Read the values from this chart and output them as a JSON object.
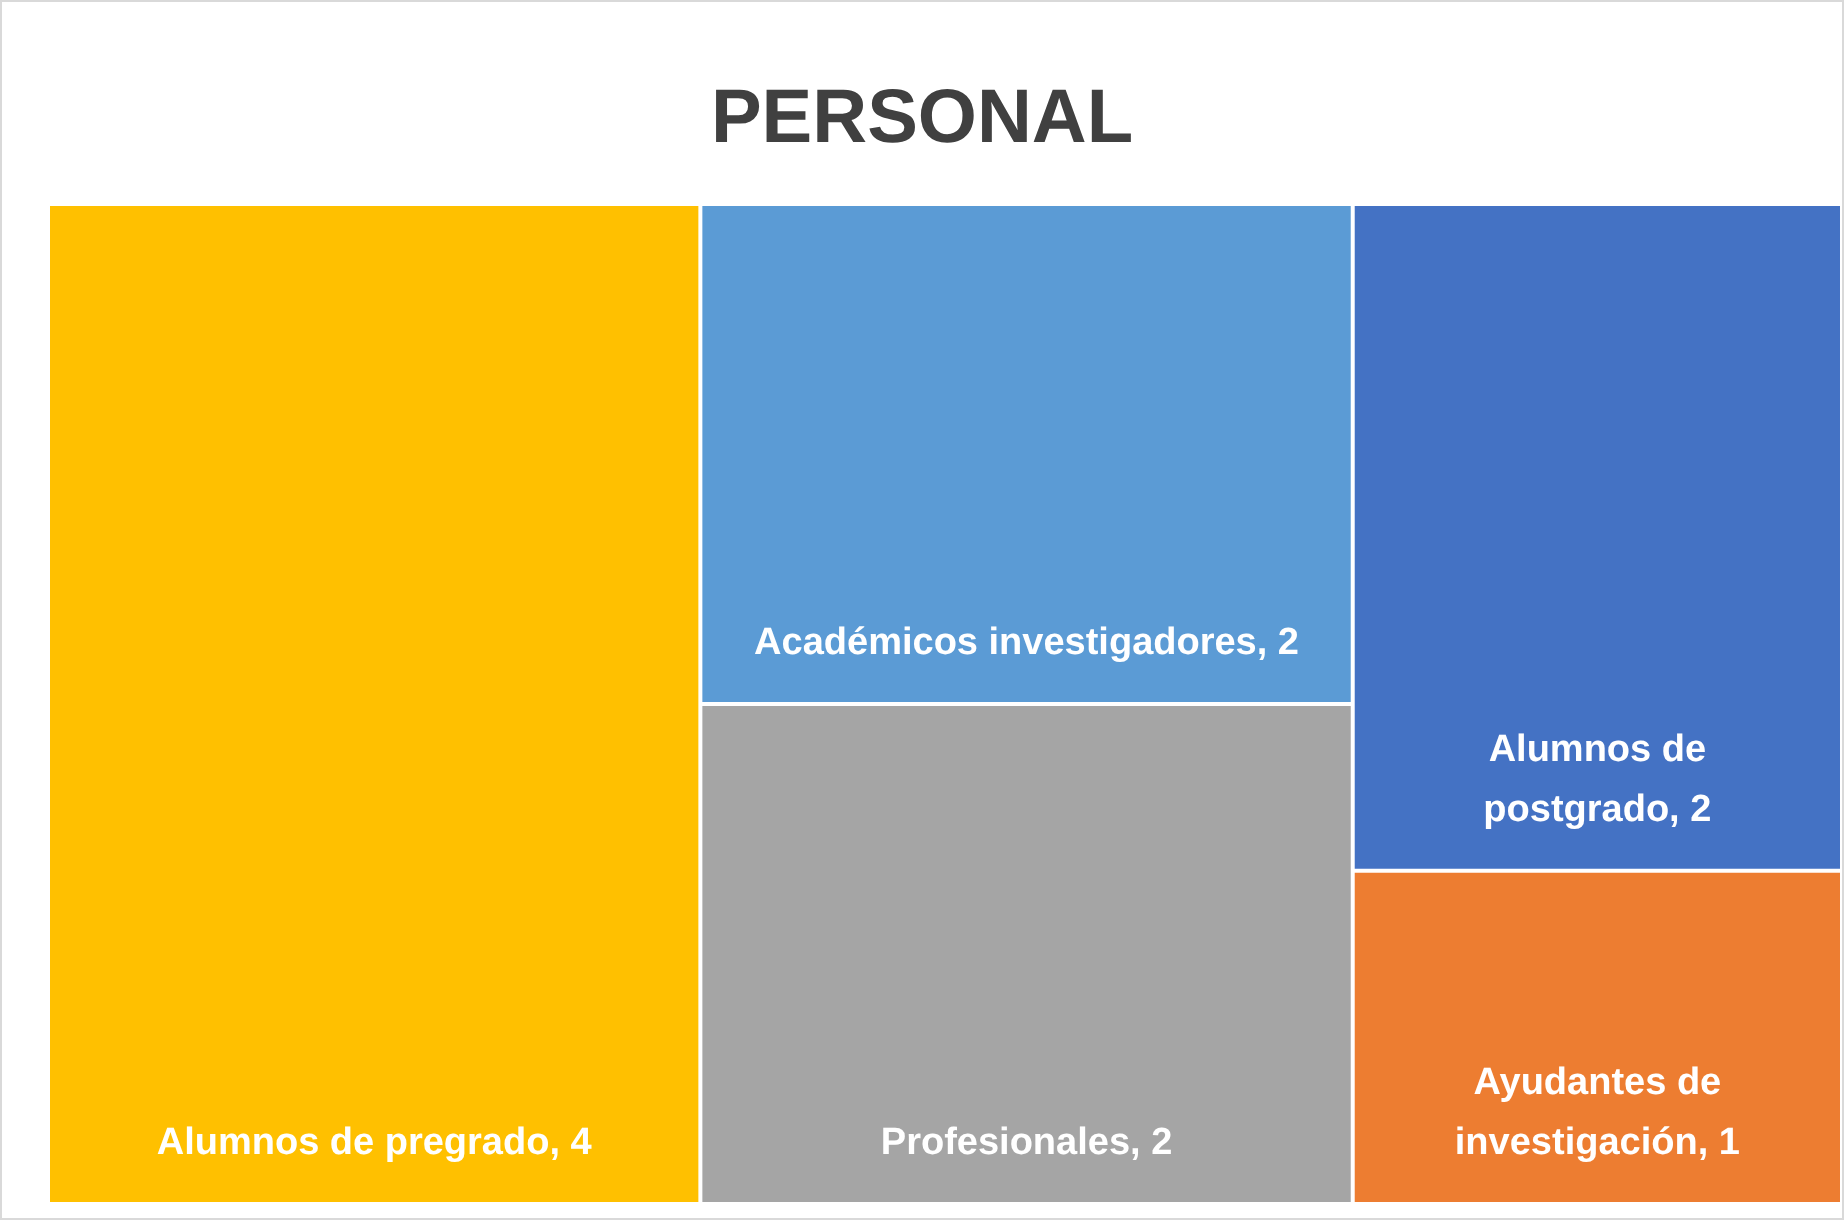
{
  "chart_data": {
    "type": "other",
    "title": "PERSONAL",
    "categories": [
      "Alumnos de pregrado",
      "Académicos investigadores",
      "Profesionales",
      "Alumnos de postgrado",
      "Ayudantes de investigación"
    ],
    "values": [
      4,
      2,
      2,
      2,
      1
    ],
    "value_labels": [
      ", 4",
      ", 2",
      ", 2",
      ", 2",
      ", 1"
    ],
    "colors": [
      "#ffc000",
      "#5b9bd5",
      "#a5a5a5",
      "#4472c4",
      "#ed7d31"
    ]
  }
}
